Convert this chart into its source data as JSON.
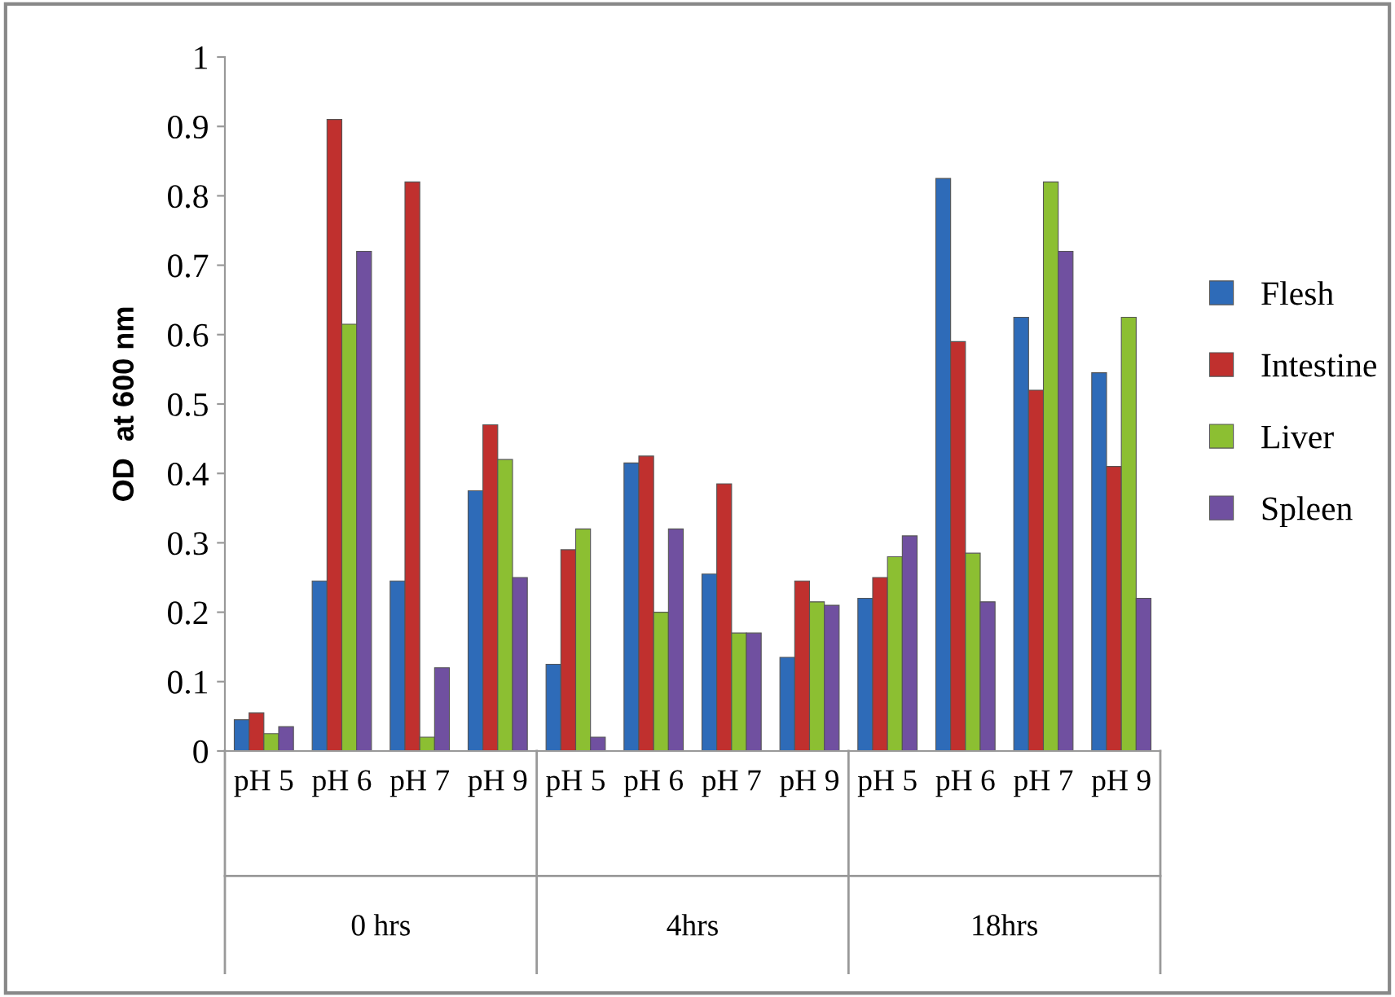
{
  "chart_data": {
    "type": "bar",
    "ylabel": "OD  at 600 nm",
    "categories": [
      "pH 5",
      "pH 6",
      "pH 7",
      "pH 9",
      "pH 5",
      "pH 6",
      "pH 7",
      "pH 9",
      "pH 5",
      "pH 6",
      "pH 7",
      "pH 9"
    ],
    "annotations": [
      "0 hrs",
      "4hrs",
      "18hrs"
    ],
    "series": [
      {
        "name": "Flesh",
        "color": "#2e6bb8",
        "values": [
          0.045,
          0.245,
          0.245,
          0.375,
          0.125,
          0.415,
          0.255,
          0.135,
          0.22,
          0.825,
          0.625,
          0.545
        ]
      },
      {
        "name": "Intestine",
        "color": "#c0302e",
        "values": [
          0.055,
          0.91,
          0.82,
          0.47,
          0.29,
          0.425,
          0.385,
          0.245,
          0.25,
          0.59,
          0.52,
          0.41
        ]
      },
      {
        "name": "Liver",
        "color": "#8cbf32",
        "values": [
          0.025,
          0.615,
          0.02,
          0.42,
          0.32,
          0.2,
          0.17,
          0.215,
          0.28,
          0.285,
          0.82,
          0.625
        ]
      },
      {
        "name": "Spleen",
        "color": "#7050a0",
        "values": [
          0.035,
          0.72,
          0.12,
          0.25,
          0.02,
          0.32,
          0.17,
          0.21,
          0.31,
          0.215,
          0.72,
          0.22
        ]
      }
    ],
    "ylim": [
      0,
      1
    ],
    "yticks": [
      0,
      0.1,
      0.2,
      0.3,
      0.4,
      0.5,
      0.6,
      0.7,
      0.8,
      0.9,
      1
    ],
    "grid": false,
    "legend": "right"
  }
}
